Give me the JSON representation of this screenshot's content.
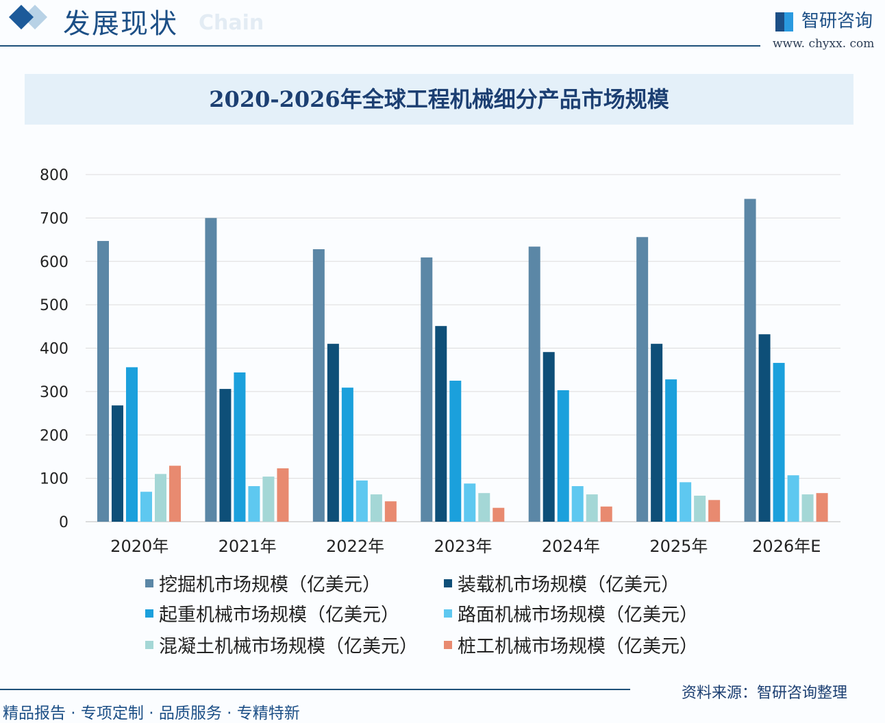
{
  "header": {
    "title": "发展现状",
    "ghost_text": "Chain",
    "brand": "智研咨询",
    "url": "www. chyxx. com"
  },
  "footer": {
    "source": "资料来源：智研咨询整理",
    "slogan": "精品报告 · 专项定制 · 品质服务 · 专精特新"
  },
  "colors": {
    "excavator": "#5b87a6",
    "loader": "#0e4f78",
    "crane": "#1ba0dc",
    "road": "#5ec8f0",
    "concrete": "#a4d7d6",
    "pile": "#e88a70"
  },
  "chart_data": {
    "type": "bar",
    "title": "2020-2026年全球工程机械细分产品市场规模",
    "categories": [
      "2020年",
      "2021年",
      "2022年",
      "2023年",
      "2024年",
      "2025年",
      "2026年E"
    ],
    "ylim": [
      0,
      800
    ],
    "yticks": [
      "0",
      "100",
      "200",
      "300",
      "400",
      "500",
      "600",
      "700",
      "800"
    ],
    "grid": true,
    "legend_position": "bottom",
    "series": [
      {
        "name": "挖掘机市场规模（亿美元）",
        "key": "excavator",
        "values": [
          647,
          700,
          628,
          609,
          634,
          656,
          744
        ]
      },
      {
        "name": "装载机市场规模（亿美元）",
        "key": "loader",
        "values": [
          268,
          306,
          410,
          451,
          391,
          410,
          432
        ]
      },
      {
        "name": "起重机械市场规模（亿美元）",
        "key": "crane",
        "values": [
          356,
          344,
          309,
          325,
          303,
          328,
          366
        ]
      },
      {
        "name": "路面机械市场规模（亿美元）",
        "key": "road",
        "values": [
          69,
          82,
          95,
          88,
          82,
          91,
          107
        ]
      },
      {
        "name": "混凝土机械市场规模（亿美元）",
        "key": "concrete",
        "values": [
          110,
          104,
          63,
          66,
          63,
          60,
          63
        ]
      },
      {
        "name": "桩工机械市场规模（亿美元）",
        "key": "pile",
        "values": [
          129,
          123,
          47,
          32,
          35,
          50,
          66
        ]
      }
    ]
  }
}
